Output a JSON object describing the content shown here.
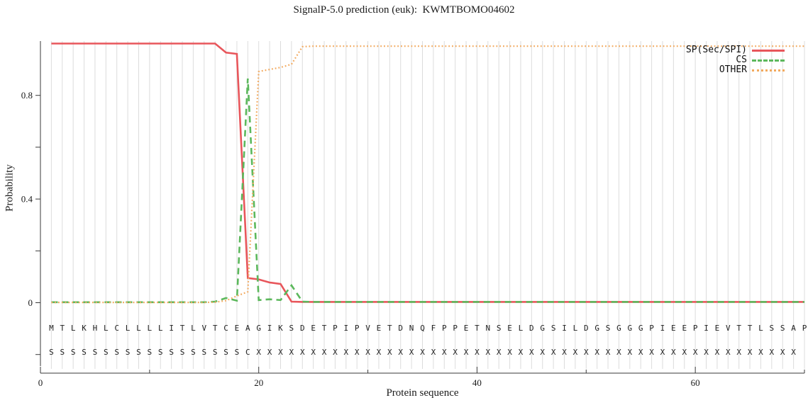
{
  "title": "SignalP-5.0 prediction (euk):  KWMTBOMO04602",
  "colors": {
    "grid": "#dcdcdc",
    "axis": "#3a3a3a",
    "text": "#1a1a1a"
  },
  "chart_data": {
    "type": "line",
    "title": "SignalP-5.0 prediction (euk):  KWMTBOMO04602",
    "xlabel": "Protein sequence",
    "ylabel": "Probability",
    "x_description": "residue positions 1-70, one data point per residue",
    "xlim": [
      0,
      70.1
    ],
    "ylim": [
      -0.245,
      1.0
    ],
    "xticks_major": [
      0,
      20,
      40,
      60
    ],
    "xticks_minor": [
      10,
      30,
      50,
      70
    ],
    "yticks_major": [
      0,
      0.4,
      0.8
    ],
    "yticks_minor": [
      -0.2,
      0.2,
      0.6
    ],
    "grid": "light vertical gridline at every residue 1-70",
    "legend": {
      "position": "top-right",
      "entries": [
        "SP(Sec/SPI)",
        "CS",
        "OTHER"
      ]
    },
    "series": [
      {
        "name": "SP(Sec/SPI)",
        "color": "#e8565b",
        "line_style": "solid",
        "values": [
          1.0,
          1.0,
          1.0,
          1.0,
          1.0,
          1.0,
          1.0,
          1.0,
          1.0,
          1.0,
          1.0,
          1.0,
          1.0,
          1.0,
          1.0,
          1.0,
          0.965,
          0.96,
          0.095,
          0.09,
          0.078,
          0.072,
          0.004,
          0.003,
          0.003,
          0.003,
          0.003,
          0.003,
          0.003,
          0.003,
          0.003,
          0.003,
          0.003,
          0.003,
          0.003,
          0.003,
          0.003,
          0.003,
          0.003,
          0.003,
          0.003,
          0.003,
          0.003,
          0.003,
          0.003,
          0.003,
          0.003,
          0.003,
          0.003,
          0.003,
          0.003,
          0.003,
          0.003,
          0.003,
          0.003,
          0.003,
          0.003,
          0.003,
          0.003,
          0.003,
          0.003,
          0.003,
          0.003,
          0.003,
          0.003,
          0.003,
          0.003,
          0.003,
          0.003,
          0.003
        ]
      },
      {
        "name": "CS",
        "color": "#5cb85c",
        "line_style": "dashed",
        "values": [
          0.002,
          0.002,
          0.002,
          0.002,
          0.002,
          0.002,
          0.002,
          0.002,
          0.002,
          0.002,
          0.002,
          0.002,
          0.002,
          0.002,
          0.002,
          0.004,
          0.018,
          0.008,
          0.865,
          0.01,
          0.013,
          0.01,
          0.067,
          0.004,
          0.003,
          0.003,
          0.003,
          0.003,
          0.003,
          0.003,
          0.003,
          0.003,
          0.003,
          0.003,
          0.003,
          0.003,
          0.003,
          0.003,
          0.003,
          0.003,
          0.003,
          0.003,
          0.003,
          0.003,
          0.003,
          0.003,
          0.003,
          0.003,
          0.003,
          0.003,
          0.003,
          0.003,
          0.003,
          0.003,
          0.003,
          0.003,
          0.003,
          0.003,
          0.003,
          0.003,
          0.003,
          0.003,
          0.003,
          0.003,
          0.003,
          0.003,
          0.003,
          0.003,
          0.003,
          0.003
        ]
      },
      {
        "name": "OTHER",
        "color": "#f2a95e",
        "line_style": "dotted",
        "values": [
          0.001,
          0.001,
          0.001,
          0.001,
          0.001,
          0.001,
          0.001,
          0.001,
          0.001,
          0.001,
          0.001,
          0.001,
          0.001,
          0.001,
          0.001,
          0.002,
          0.008,
          0.026,
          0.042,
          0.892,
          0.9,
          0.908,
          0.92,
          0.988,
          0.99,
          0.99,
          0.99,
          0.99,
          0.99,
          0.99,
          0.99,
          0.99,
          0.99,
          0.99,
          0.99,
          0.99,
          0.99,
          0.99,
          0.99,
          0.99,
          0.99,
          0.99,
          0.99,
          0.99,
          0.99,
          0.99,
          0.99,
          0.99,
          0.99,
          0.99,
          0.99,
          0.99,
          0.99,
          0.99,
          0.99,
          0.99,
          0.99,
          0.99,
          0.99,
          0.99,
          0.99,
          0.99,
          0.99,
          0.99,
          0.99,
          0.99,
          0.99,
          0.99,
          0.99,
          0.99
        ]
      }
    ],
    "sequence": "MTLKHLCLLLLITLVTCEAGIKSDETPIPVETDNQFPPETNSELDGSILDGSGGGPIEEPIEVTTLSSAP",
    "cs_annotation": "SSSSSSSSSSSSSSSSSSCXXXXXXXXXXXXXXXXXXXXXXXXXXXXXXXXXXXXXXXXXXXXXXXXXX"
  }
}
